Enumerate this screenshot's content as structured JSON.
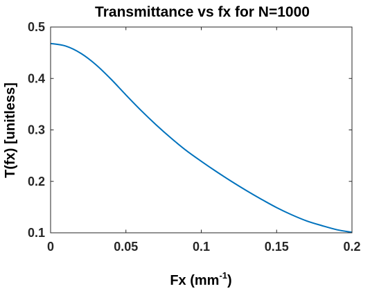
{
  "chart_data": {
    "type": "line",
    "title": "Transmittance vs fx for N=1000",
    "xlabel_main": "Fx (mm",
    "xlabel_sup": "-1",
    "xlabel_close": ")",
    "ylabel": "T(fx) [unitless]",
    "xlim": [
      0,
      0.2
    ],
    "ylim": [
      0.1,
      0.5
    ],
    "xticks": [
      0,
      0.05,
      0.1,
      0.15,
      0.2
    ],
    "xtick_labels": [
      "0",
      "0.05",
      "0.1",
      "0.15",
      "0.2"
    ],
    "yticks": [
      0.1,
      0.2,
      0.3,
      0.4,
      0.5
    ],
    "ytick_labels": [
      "0.1",
      "0.2",
      "0.3",
      "0.4",
      "0.5"
    ],
    "grid": false,
    "line_color": "#0072BD",
    "series": [
      {
        "x": [
          0,
          0.01,
          0.02,
          0.03,
          0.04,
          0.05,
          0.06,
          0.07,
          0.08,
          0.09,
          0.1,
          0.11,
          0.12,
          0.13,
          0.14,
          0.15,
          0.16,
          0.17,
          0.18,
          0.19,
          0.2
        ],
        "y": [
          0.468,
          0.463,
          0.449,
          0.427,
          0.399,
          0.368,
          0.338,
          0.31,
          0.284,
          0.26,
          0.239,
          0.219,
          0.2,
          0.182,
          0.165,
          0.149,
          0.135,
          0.123,
          0.114,
          0.106,
          0.101
        ]
      }
    ]
  }
}
